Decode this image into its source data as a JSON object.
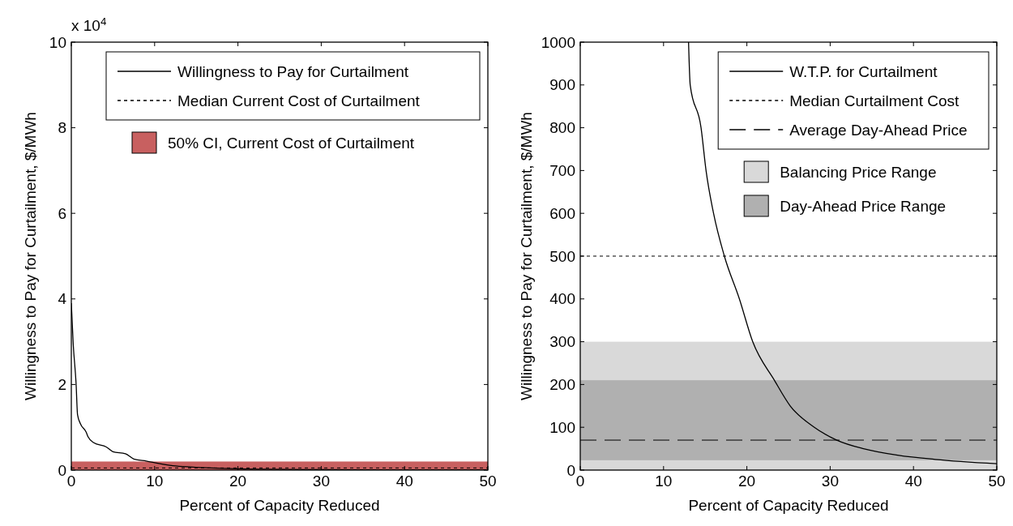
{
  "chart_data": [
    {
      "type": "line",
      "xlabel": "Percent of Capacity Reduced",
      "ylabel": "Willingness to Pay for Curtailment, $/MWh",
      "annotations": [
        "x 10$^{4}$"
      ],
      "series": [
        {
          "name": "Willingness to Pay for Curtailment",
          "color": "#000000",
          "x": [
            0,
            0.23,
            0.57,
            0.75,
            1.1,
            1.8,
            2.0,
            2.7,
            4.2,
            5.0,
            6.5,
            7.5,
            9.0,
            12.2,
            14.6,
            20,
            30,
            40,
            50
          ],
          "values": [
            3.9,
            2.94,
            2.03,
            1.29,
            1.08,
            0.88,
            0.78,
            0.64,
            0.54,
            0.43,
            0.38,
            0.26,
            0.21,
            0.1,
            0.07,
            0.03,
            0.01,
            0,
            0
          ]
        }
      ],
      "ref_lines": [
        {
          "axis": "y",
          "value": 0.05,
          "label": "Median Current Cost of Curtailment",
          "color": "#000000",
          "line_style": "dotted"
        }
      ],
      "bands": [
        {
          "axis": "y",
          "from": 0,
          "to": 0.2,
          "label": "50% CI, Current Cost of Curtailment",
          "color": "#c86060"
        }
      ],
      "xlim": [
        0,
        50
      ],
      "xticks": [
        0,
        10,
        20,
        30,
        40,
        50
      ],
      "ylim": [
        0,
        10
      ],
      "yticks": [
        0,
        2,
        4,
        6,
        8,
        10
      ],
      "legend": "top right"
    },
    {
      "type": "line",
      "xlabel": "Percent of Capacity Reduced",
      "ylabel": "Willingness to Pay for Curtailment, $/MWh",
      "series": [
        {
          "name": "W.T.P. for Curtailment",
          "color": "#000000",
          "x": [
            13.0,
            13.2,
            14.5,
            15.1,
            16.0,
            17.3,
            19.1,
            20.7,
            23.3,
            25.2,
            28.1,
            30.8,
            34,
            38.1,
            42.6,
            50
          ],
          "values": [
            1000,
            900,
            800,
            700,
            600,
            500,
            400,
            300,
            210,
            150,
            100,
            70,
            50,
            35,
            25,
            15
          ]
        }
      ],
      "ref_lines": [
        {
          "axis": "y",
          "value": 500,
          "label": "Median Curtailment Cost",
          "color": "#000000",
          "line_style": "dotted"
        },
        {
          "axis": "y",
          "value": 70,
          "label": "Average Day-Ahead Price",
          "color": "#000000",
          "line_style": "dashed"
        }
      ],
      "bands": [
        {
          "axis": "y",
          "from": 0,
          "to": 300,
          "label": "Balancing Price Range",
          "color": "#d9d9d9"
        },
        {
          "axis": "y",
          "from": 23,
          "to": 210,
          "label": "Day-Ahead Price Range",
          "color": "#b0b0b0"
        }
      ],
      "xlim": [
        0,
        50
      ],
      "xticks": [
        0,
        10,
        20,
        30,
        40,
        50
      ],
      "ylim": [
        0,
        1000
      ],
      "yticks": [
        0,
        100,
        200,
        300,
        400,
        500,
        600,
        700,
        800,
        900,
        1000
      ],
      "legend": "top right"
    }
  ]
}
